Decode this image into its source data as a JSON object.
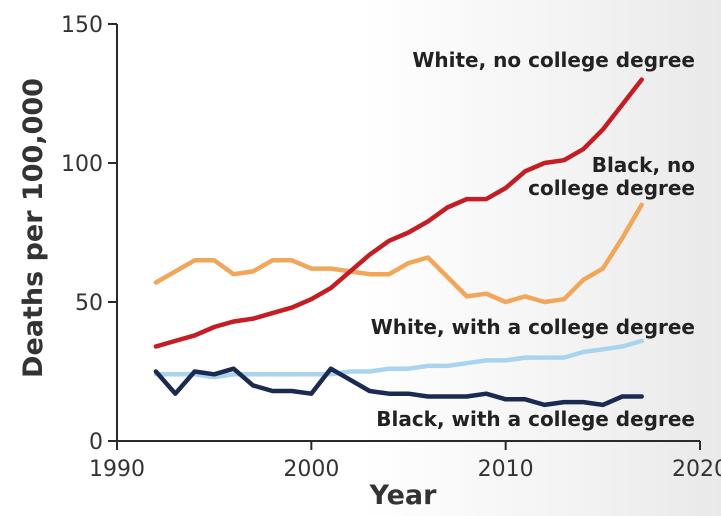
{
  "chart_data": {
    "type": "line",
    "xlabel": "Year",
    "ylabel": "Deaths per 100,000",
    "xlim": [
      1990,
      2020
    ],
    "ylim": [
      0,
      150
    ],
    "x_ticks": [
      "1990",
      "2000",
      "2010",
      "2020"
    ],
    "y_ticks": [
      "0",
      "50",
      "100",
      "150"
    ],
    "x": [
      1992,
      1993,
      1994,
      1995,
      1996,
      1997,
      1998,
      1999,
      2000,
      2001,
      2002,
      2003,
      2004,
      2005,
      2006,
      2007,
      2008,
      2009,
      2010,
      2011,
      2012,
      2013,
      2014,
      2015,
      2016,
      2017
    ],
    "series": [
      {
        "name": "White, no college degree",
        "label_lines": [
          "White, no college degree"
        ],
        "color": "#c41e24",
        "values": [
          34,
          36,
          38,
          41,
          43,
          44,
          46,
          48,
          51,
          55,
          61,
          67,
          72,
          75,
          79,
          84,
          87,
          87,
          91,
          97,
          100,
          101,
          105,
          112,
          121,
          130
        ]
      },
      {
        "name": "Black, no college degree",
        "label_lines": [
          "Black, no",
          "college degree"
        ],
        "color": "#f2a65a",
        "values": [
          57,
          61,
          65,
          65,
          60,
          61,
          65,
          65,
          62,
          62,
          61,
          60,
          60,
          64,
          66,
          59,
          52,
          53,
          50,
          52,
          50,
          51,
          58,
          62,
          73,
          85
        ]
      },
      {
        "name": "White, with a college degree",
        "label_lines": [
          "White, with a college degree"
        ],
        "color": "#a9d3ef",
        "values": [
          24,
          24,
          24,
          23,
          24,
          24,
          24,
          24,
          24,
          24,
          25,
          25,
          26,
          26,
          27,
          27,
          28,
          29,
          29,
          30,
          30,
          30,
          32,
          33,
          34,
          36
        ]
      },
      {
        "name": "Black, with a college degree",
        "label_lines": [
          "Black, with a college degree"
        ],
        "color": "#1a2a50",
        "values": [
          25,
          17,
          25,
          24,
          26,
          20,
          18,
          18,
          17,
          26,
          22,
          18,
          17,
          17,
          16,
          16,
          16,
          17,
          15,
          15,
          13,
          14,
          14,
          13,
          16,
          16
        ]
      }
    ]
  }
}
